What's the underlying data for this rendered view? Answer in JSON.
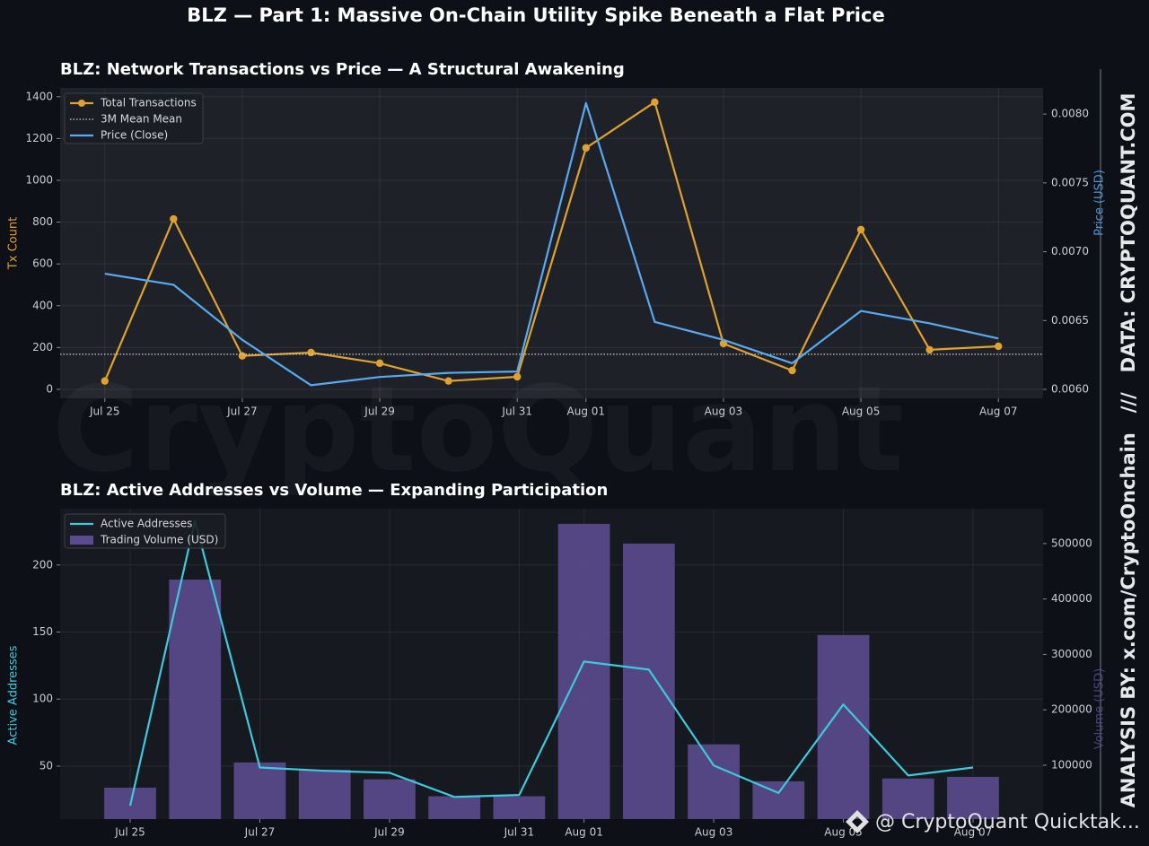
{
  "title": "BLZ — Part 1: Massive On-Chain Utility Spike Beneath a Flat Price",
  "side_text": "ANALYSIS BY: x.com/CryptoOnchain   ///   DATA: CRYPTOQUANT.COM",
  "watermark": "CryptoQuant",
  "footer": "@ CryptoQuant Quicktak...",
  "chart_data": [
    {
      "type": "line",
      "title": "BLZ: Network Transactions vs Price — A Structural Awakening",
      "ylabel": "Tx Count",
      "y2label": "Price (USD)",
      "categories": [
        "Jul 25",
        null,
        "Jul 27",
        null,
        "Jul 29",
        null,
        "Jul 31",
        "Aug 01",
        null,
        "Aug 03",
        null,
        "Aug 05",
        null,
        "Aug 07"
      ],
      "series": [
        {
          "name": "Total Transactions",
          "kind": "line",
          "marker": true,
          "color": "#e0a22e",
          "values": [
            40,
            815,
            160,
            176,
            125,
            40,
            60,
            1155,
            1374,
            219,
            90,
            764,
            189,
            206
          ]
        },
        {
          "name": "3M Mean Mean",
          "kind": "hline",
          "style": "dotted",
          "color": "#cfd2d6",
          "value": 168
        },
        {
          "name": "Price (Close)",
          "kind": "line",
          "axis": "y2",
          "color": "#5aa9f0",
          "values": [
            0.00684,
            0.00676,
            0.00636,
            0.00603,
            0.00609,
            0.00612,
            0.00613,
            0.00808,
            0.00649,
            0.00636,
            0.00619,
            0.00657,
            0.00648,
            0.00637
          ]
        }
      ],
      "ylim": [
        -43,
        1442
      ],
      "yticks": [
        0,
        200,
        400,
        600,
        800,
        1000,
        1200,
        1400
      ],
      "y2lim": [
        0.005935,
        0.00819
      ],
      "y2ticks": [
        {
          "value": 0.006,
          "label": "0.0060"
        },
        {
          "value": 0.0065,
          "label": "0.0065"
        },
        {
          "value": 0.007,
          "label": "0.0070"
        },
        {
          "value": 0.0075,
          "label": "0.0075"
        },
        {
          "value": 0.008,
          "label": "0.0080"
        }
      ],
      "grid": true,
      "legend": "upper left"
    },
    {
      "type": "bar",
      "title": "BLZ: Active Addresses vs Volume — Expanding Participation",
      "ylabel": "Active Addresses",
      "y2label": "Volume (USD)",
      "categories": [
        "Jul 25",
        null,
        "Jul 27",
        null,
        "Jul 29",
        null,
        "Jul 31",
        "Aug 01",
        null,
        "Aug 03",
        null,
        "Aug 05",
        null,
        "Aug 07"
      ],
      "series": [
        {
          "name": "Active Addresses",
          "kind": "line",
          "color": "#3ec9dc",
          "values": [
            20.5,
            233,
            49,
            46.5,
            45,
            27,
            28.5,
            128,
            122,
            50.5,
            30,
            96,
            43,
            49
          ]
        },
        {
          "name": "Trading Volume (USD)",
          "kind": "bar",
          "axis": "y2",
          "color": "#5b4a8e",
          "values": [
            59500,
            435000,
            105000,
            92000,
            74500,
            44000,
            44000,
            535600,
            500000,
            137700,
            71000,
            335000,
            76000,
            79000
          ]
        }
      ],
      "ylim": [
        10.5,
        242
      ],
      "yticks": [
        50,
        100,
        150,
        200
      ],
      "y2lim": [
        2800,
        563000
      ],
      "y2ticks": [
        100000,
        200000,
        300000,
        400000,
        500000
      ],
      "grid": true,
      "legend": "upper left"
    }
  ]
}
